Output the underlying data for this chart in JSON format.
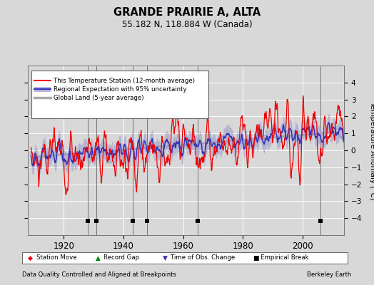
{
  "title": "GRANDE PRAIRIE A, ALTA",
  "subtitle": "55.182 N, 118.884 W (Canada)",
  "ylabel": "Temperature Anomaly (°C)",
  "xlabel_left": "Data Quality Controlled and Aligned at Breakpoints",
  "xlabel_right": "Berkeley Earth",
  "ylim": [
    -5,
    5
  ],
  "yticks": [
    -4,
    -3,
    -2,
    -1,
    0,
    1,
    2,
    3,
    4
  ],
  "xlim": [
    1908,
    2014
  ],
  "xticks": [
    1920,
    1940,
    1960,
    1980,
    2000
  ],
  "bg_color": "#d8d8d8",
  "plot_bg_color": "#d8d8d8",
  "grid_color": "#ffffff",
  "red_line_color": "#ee0000",
  "blue_line_color": "#3333bb",
  "band_color": "#9999cc",
  "gray_line_color": "#aaaaaa",
  "empirical_breaks": [
    1928,
    1931,
    1943,
    1948,
    1965,
    2006
  ],
  "station_moves": [],
  "record_gaps": [],
  "obs_changes": []
}
